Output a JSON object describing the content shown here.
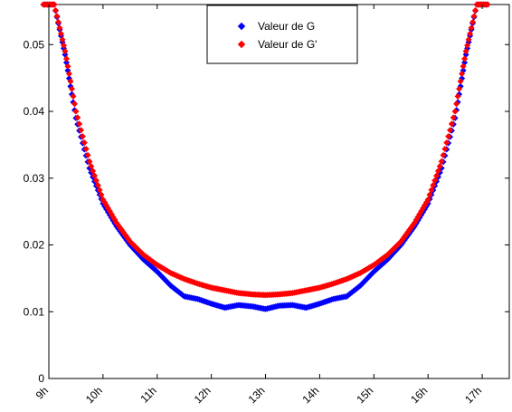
{
  "chart_data": {
    "type": "scatter",
    "title": "",
    "xlabel": "",
    "ylabel": "",
    "x_categories": [
      "9h",
      "10h",
      "11h",
      "12h",
      "13h",
      "14h",
      "15h",
      "16h",
      "17h"
    ],
    "xlim": [
      9,
      17.5
    ],
    "ylim": [
      0,
      0.056
    ],
    "yticks": [
      0,
      0.01,
      0.02,
      0.03,
      0.04,
      0.05
    ],
    "ytick_labels": [
      "0",
      "0.01",
      "0.02",
      "0.03",
      "0.04",
      "0.05"
    ],
    "grid": false,
    "legend_position": "top-center",
    "series": [
      {
        "name": "Valeur de G",
        "color": "#0000ff",
        "points": [
          [
            8.9,
            0.056
          ],
          [
            9.1,
            0.056
          ],
          [
            9.3,
            0.0485
          ],
          [
            9.5,
            0.039
          ],
          [
            9.75,
            0.0315
          ],
          [
            10.0,
            0.0262
          ],
          [
            10.25,
            0.0228
          ],
          [
            10.5,
            0.02
          ],
          [
            10.75,
            0.0178
          ],
          [
            11.0,
            0.016
          ],
          [
            11.25,
            0.0139
          ],
          [
            11.5,
            0.0123
          ],
          [
            11.75,
            0.0119
          ],
          [
            12.0,
            0.0112
          ],
          [
            12.25,
            0.0106
          ],
          [
            12.5,
            0.011
          ],
          [
            12.75,
            0.0108
          ],
          [
            13.0,
            0.0104
          ],
          [
            13.25,
            0.0109
          ],
          [
            13.5,
            0.011
          ],
          [
            13.75,
            0.0106
          ],
          [
            14.0,
            0.0112
          ],
          [
            14.25,
            0.0119
          ],
          [
            14.5,
            0.0123
          ],
          [
            14.75,
            0.0139
          ],
          [
            15.0,
            0.016
          ],
          [
            15.25,
            0.0178
          ],
          [
            15.5,
            0.02
          ],
          [
            15.75,
            0.0228
          ],
          [
            16.0,
            0.0262
          ],
          [
            16.25,
            0.0315
          ],
          [
            16.5,
            0.039
          ],
          [
            16.7,
            0.0485
          ],
          [
            16.9,
            0.056
          ],
          [
            17.1,
            0.056
          ]
        ]
      },
      {
        "name": "Valeur de G'",
        "color": "#ff0000",
        "points": [
          [
            8.9,
            0.056
          ],
          [
            9.1,
            0.056
          ],
          [
            9.3,
            0.049
          ],
          [
            9.5,
            0.04
          ],
          [
            9.75,
            0.0325
          ],
          [
            10.0,
            0.0268
          ],
          [
            10.25,
            0.0233
          ],
          [
            10.5,
            0.0205
          ],
          [
            10.75,
            0.0185
          ],
          [
            11.0,
            0.017
          ],
          [
            11.25,
            0.0158
          ],
          [
            11.5,
            0.0149
          ],
          [
            11.75,
            0.0142
          ],
          [
            12.0,
            0.0136
          ],
          [
            12.25,
            0.0132
          ],
          [
            12.5,
            0.0128
          ],
          [
            12.75,
            0.0126
          ],
          [
            13.0,
            0.0125
          ],
          [
            13.25,
            0.0126
          ],
          [
            13.5,
            0.0128
          ],
          [
            13.75,
            0.0132
          ],
          [
            14.0,
            0.0136
          ],
          [
            14.25,
            0.0142
          ],
          [
            14.5,
            0.0149
          ],
          [
            14.75,
            0.0158
          ],
          [
            15.0,
            0.017
          ],
          [
            15.25,
            0.0185
          ],
          [
            15.5,
            0.0205
          ],
          [
            15.75,
            0.0233
          ],
          [
            16.0,
            0.0268
          ],
          [
            16.25,
            0.0325
          ],
          [
            16.5,
            0.04
          ],
          [
            16.7,
            0.049
          ],
          [
            16.9,
            0.056
          ],
          [
            17.1,
            0.056
          ]
        ]
      }
    ]
  }
}
